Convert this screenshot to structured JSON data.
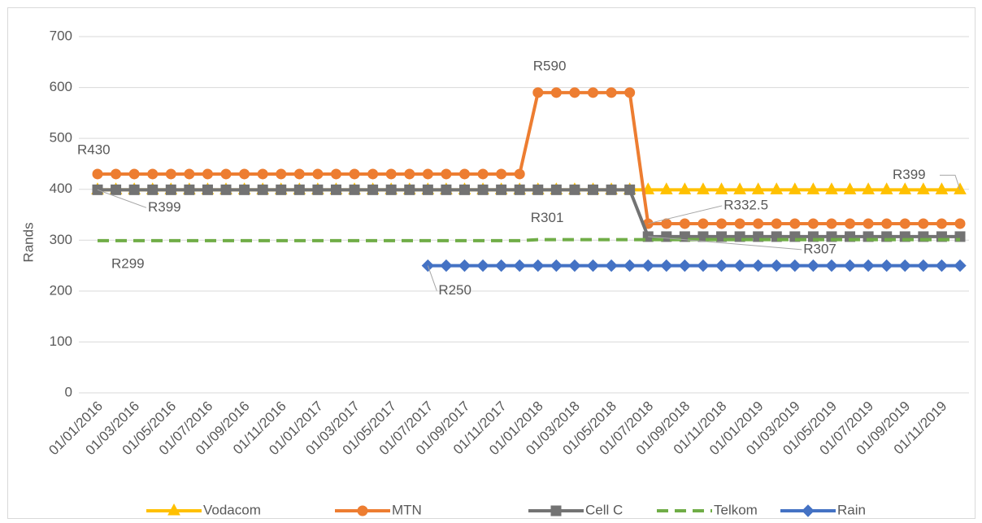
{
  "chart_data": {
    "type": "line",
    "ylabel": "Rands",
    "categories": [
      "01/01/2016",
      null,
      "01/03/2016",
      null,
      "01/05/2016",
      null,
      "01/07/2016",
      null,
      "01/09/2016",
      null,
      "01/11/2016",
      null,
      "01/01/2017",
      null,
      "01/03/2017",
      null,
      "01/05/2017",
      null,
      "01/07/2017",
      null,
      "01/09/2017",
      null,
      "01/11/2017",
      null,
      "01/01/2018",
      null,
      "01/03/2018",
      null,
      "01/05/2018",
      null,
      "01/07/2018",
      null,
      "01/09/2018",
      null,
      "01/11/2018",
      null,
      "01/01/2019",
      null,
      "01/03/2019",
      null,
      "01/05/2019",
      null,
      "01/07/2019",
      null,
      "01/09/2019",
      null,
      "01/11/2019",
      null
    ],
    "ylim": [
      0,
      700
    ],
    "yticks": [
      0,
      100,
      200,
      300,
      400,
      500,
      600,
      700
    ],
    "grid": true,
    "legend": "bottom",
    "series": [
      {
        "name": "Vodacom",
        "color": "#FFC000",
        "marker": "triangle",
        "values": [
          399,
          399,
          399,
          399,
          399,
          399,
          399,
          399,
          399,
          399,
          399,
          399,
          399,
          399,
          399,
          399,
          399,
          399,
          399,
          399,
          399,
          399,
          399,
          399,
          399,
          399,
          399,
          399,
          399,
          399,
          399,
          399,
          399,
          399,
          399,
          399,
          399,
          399,
          399,
          399,
          399,
          399,
          399,
          399,
          399,
          399,
          399,
          399
        ],
        "value_labels": [
          null,
          null,
          null,
          null,
          null,
          null,
          null,
          null,
          null,
          null,
          null,
          null,
          null,
          null,
          null,
          null,
          null,
          null,
          null,
          null,
          null,
          null,
          null,
          null,
          null,
          null,
          null,
          null,
          null,
          null,
          null,
          null,
          null,
          null,
          null,
          null,
          null,
          null,
          null,
          null,
          null,
          null,
          null,
          null,
          null,
          null,
          null,
          "R399"
        ]
      },
      {
        "name": "MTN",
        "color": "#ED7D31",
        "marker": "circle",
        "values": [
          430,
          430,
          430,
          430,
          430,
          430,
          430,
          430,
          430,
          430,
          430,
          430,
          430,
          430,
          430,
          430,
          430,
          430,
          430,
          430,
          430,
          430,
          430,
          430,
          590,
          590,
          590,
          590,
          590,
          590,
          332.5,
          332.5,
          332.5,
          332.5,
          332.5,
          332.5,
          332.5,
          332.5,
          332.5,
          332.5,
          332.5,
          332.5,
          332.5,
          332.5,
          332.5,
          332.5,
          332.5,
          332.5
        ],
        "value_labels": [
          "R430",
          null,
          null,
          null,
          null,
          null,
          null,
          null,
          null,
          null,
          null,
          null,
          null,
          null,
          null,
          null,
          null,
          null,
          null,
          null,
          null,
          null,
          null,
          null,
          "R590",
          null,
          null,
          null,
          null,
          null,
          "R332.5",
          null,
          null,
          null,
          null,
          null,
          null,
          null,
          null,
          null,
          null,
          null,
          null,
          null,
          null,
          null,
          null,
          null
        ]
      },
      {
        "name": "Cell C",
        "color": "#737373",
        "marker": "square",
        "values": [
          399,
          399,
          399,
          399,
          399,
          399,
          399,
          399,
          399,
          399,
          399,
          399,
          399,
          399,
          399,
          399,
          399,
          399,
          399,
          399,
          399,
          399,
          399,
          399,
          399,
          399,
          399,
          399,
          399,
          399,
          307,
          307,
          307,
          307,
          307,
          307,
          307,
          307,
          307,
          307,
          307,
          307,
          307,
          307,
          307,
          307,
          307,
          307
        ],
        "value_labels": [
          "R399",
          null,
          null,
          null,
          null,
          null,
          null,
          null,
          null,
          null,
          null,
          null,
          null,
          null,
          null,
          null,
          null,
          null,
          null,
          null,
          null,
          null,
          null,
          null,
          null,
          null,
          null,
          null,
          null,
          null,
          "R307",
          null,
          null,
          null,
          null,
          null,
          null,
          null,
          null,
          null,
          null,
          null,
          null,
          null,
          null,
          null,
          null,
          null
        ]
      },
      {
        "name": "Telkom",
        "color": "#70AD47",
        "marker": "none",
        "dash": true,
        "values": [
          299,
          299,
          299,
          299,
          299,
          299,
          299,
          299,
          299,
          299,
          299,
          299,
          299,
          299,
          299,
          299,
          299,
          299,
          299,
          299,
          299,
          299,
          299,
          299,
          301,
          301,
          301,
          301,
          301,
          301,
          301,
          301,
          301,
          301,
          301,
          301,
          301,
          301,
          301,
          301,
          301,
          301,
          301,
          301,
          301,
          301,
          301,
          301
        ],
        "value_labels": [
          "R299",
          null,
          null,
          null,
          null,
          null,
          null,
          null,
          null,
          null,
          null,
          null,
          null,
          null,
          null,
          null,
          null,
          null,
          null,
          null,
          null,
          null,
          null,
          null,
          "R301",
          null,
          null,
          null,
          null,
          null,
          null,
          null,
          null,
          null,
          null,
          null,
          null,
          null,
          null,
          null,
          null,
          null,
          null,
          null,
          null,
          null,
          null,
          null
        ]
      },
      {
        "name": "Rain",
        "color": "#4472C4",
        "marker": "diamond",
        "values": [
          null,
          null,
          null,
          null,
          null,
          null,
          null,
          null,
          null,
          null,
          null,
          null,
          null,
          null,
          null,
          null,
          null,
          null,
          250,
          250,
          250,
          250,
          250,
          250,
          250,
          250,
          250,
          250,
          250,
          250,
          250,
          250,
          250,
          250,
          250,
          250,
          250,
          250,
          250,
          250,
          250,
          250,
          250,
          250,
          250,
          250,
          250,
          250
        ],
        "value_labels": [
          null,
          null,
          null,
          null,
          null,
          null,
          null,
          null,
          null,
          null,
          null,
          null,
          null,
          null,
          null,
          null,
          null,
          null,
          "R250",
          null,
          null,
          null,
          null,
          null,
          null,
          null,
          null,
          null,
          null,
          null,
          null,
          null,
          null,
          null,
          null,
          null,
          null,
          null,
          null,
          null,
          null,
          null,
          null,
          null,
          null,
          null,
          null,
          null
        ]
      }
    ]
  }
}
